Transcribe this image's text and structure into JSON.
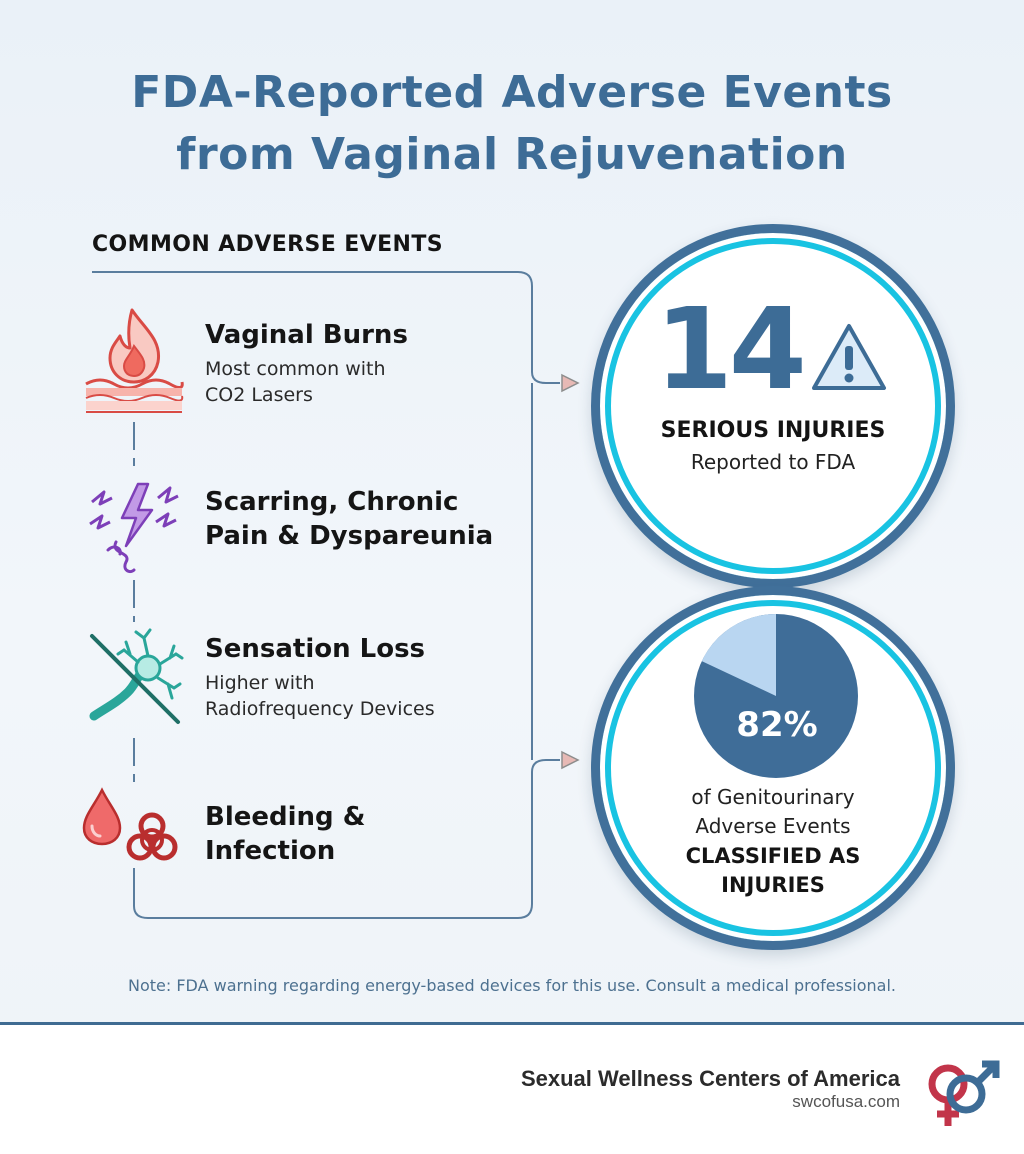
{
  "title": {
    "line1": "FDA-Reported Adverse Events",
    "line2": "from Vaginal Rejuvenation"
  },
  "section_heading": "COMMON ADVERSE EVENTS",
  "events": [
    {
      "name": "Vaginal Burns",
      "description_line1": "Most common with",
      "description_line2": "CO2 Lasers",
      "icon": "flame-skin-icon"
    },
    {
      "name_line1": "Scarring, Chronic",
      "name_line2": "Pain & Dyspareunia",
      "icon": "lightning-pain-icon"
    },
    {
      "name": "Sensation Loss",
      "description_line1": "Higher with",
      "description_line2": "Radiofrequency Devices",
      "icon": "crossed-nerve-icon"
    },
    {
      "name_line1": "Bleeding &",
      "name_line2": "Infection",
      "icon": "blood-drop-biohazard-icon"
    }
  ],
  "stat_injuries": {
    "value": "14",
    "label_bold": "SERIOUS INJURIES",
    "label": "Reported to FDA",
    "icon": "warning-triangle-icon"
  },
  "stat_percent": {
    "value_text": "82%",
    "fraction": 0.82,
    "desc_line1": "of Genitourinary",
    "desc_line2": "Adverse Events",
    "bold_line1": "CLASSIFIED AS",
    "bold_line2": "INJURIES"
  },
  "note": "Note: FDA warning regarding energy-based devices for this use. Consult a medical professional.",
  "footer": {
    "brand": "Sexual Wellness Centers of America",
    "url": "swcofusa.com",
    "logo_icon": "gender-symbols-icon"
  },
  "colors": {
    "title": "#3d6c96",
    "circle_border": "#41709a",
    "circle_accent": "#19c3e2",
    "pie_main": "#3f6d98",
    "pie_slice": "#b9d6f1"
  }
}
